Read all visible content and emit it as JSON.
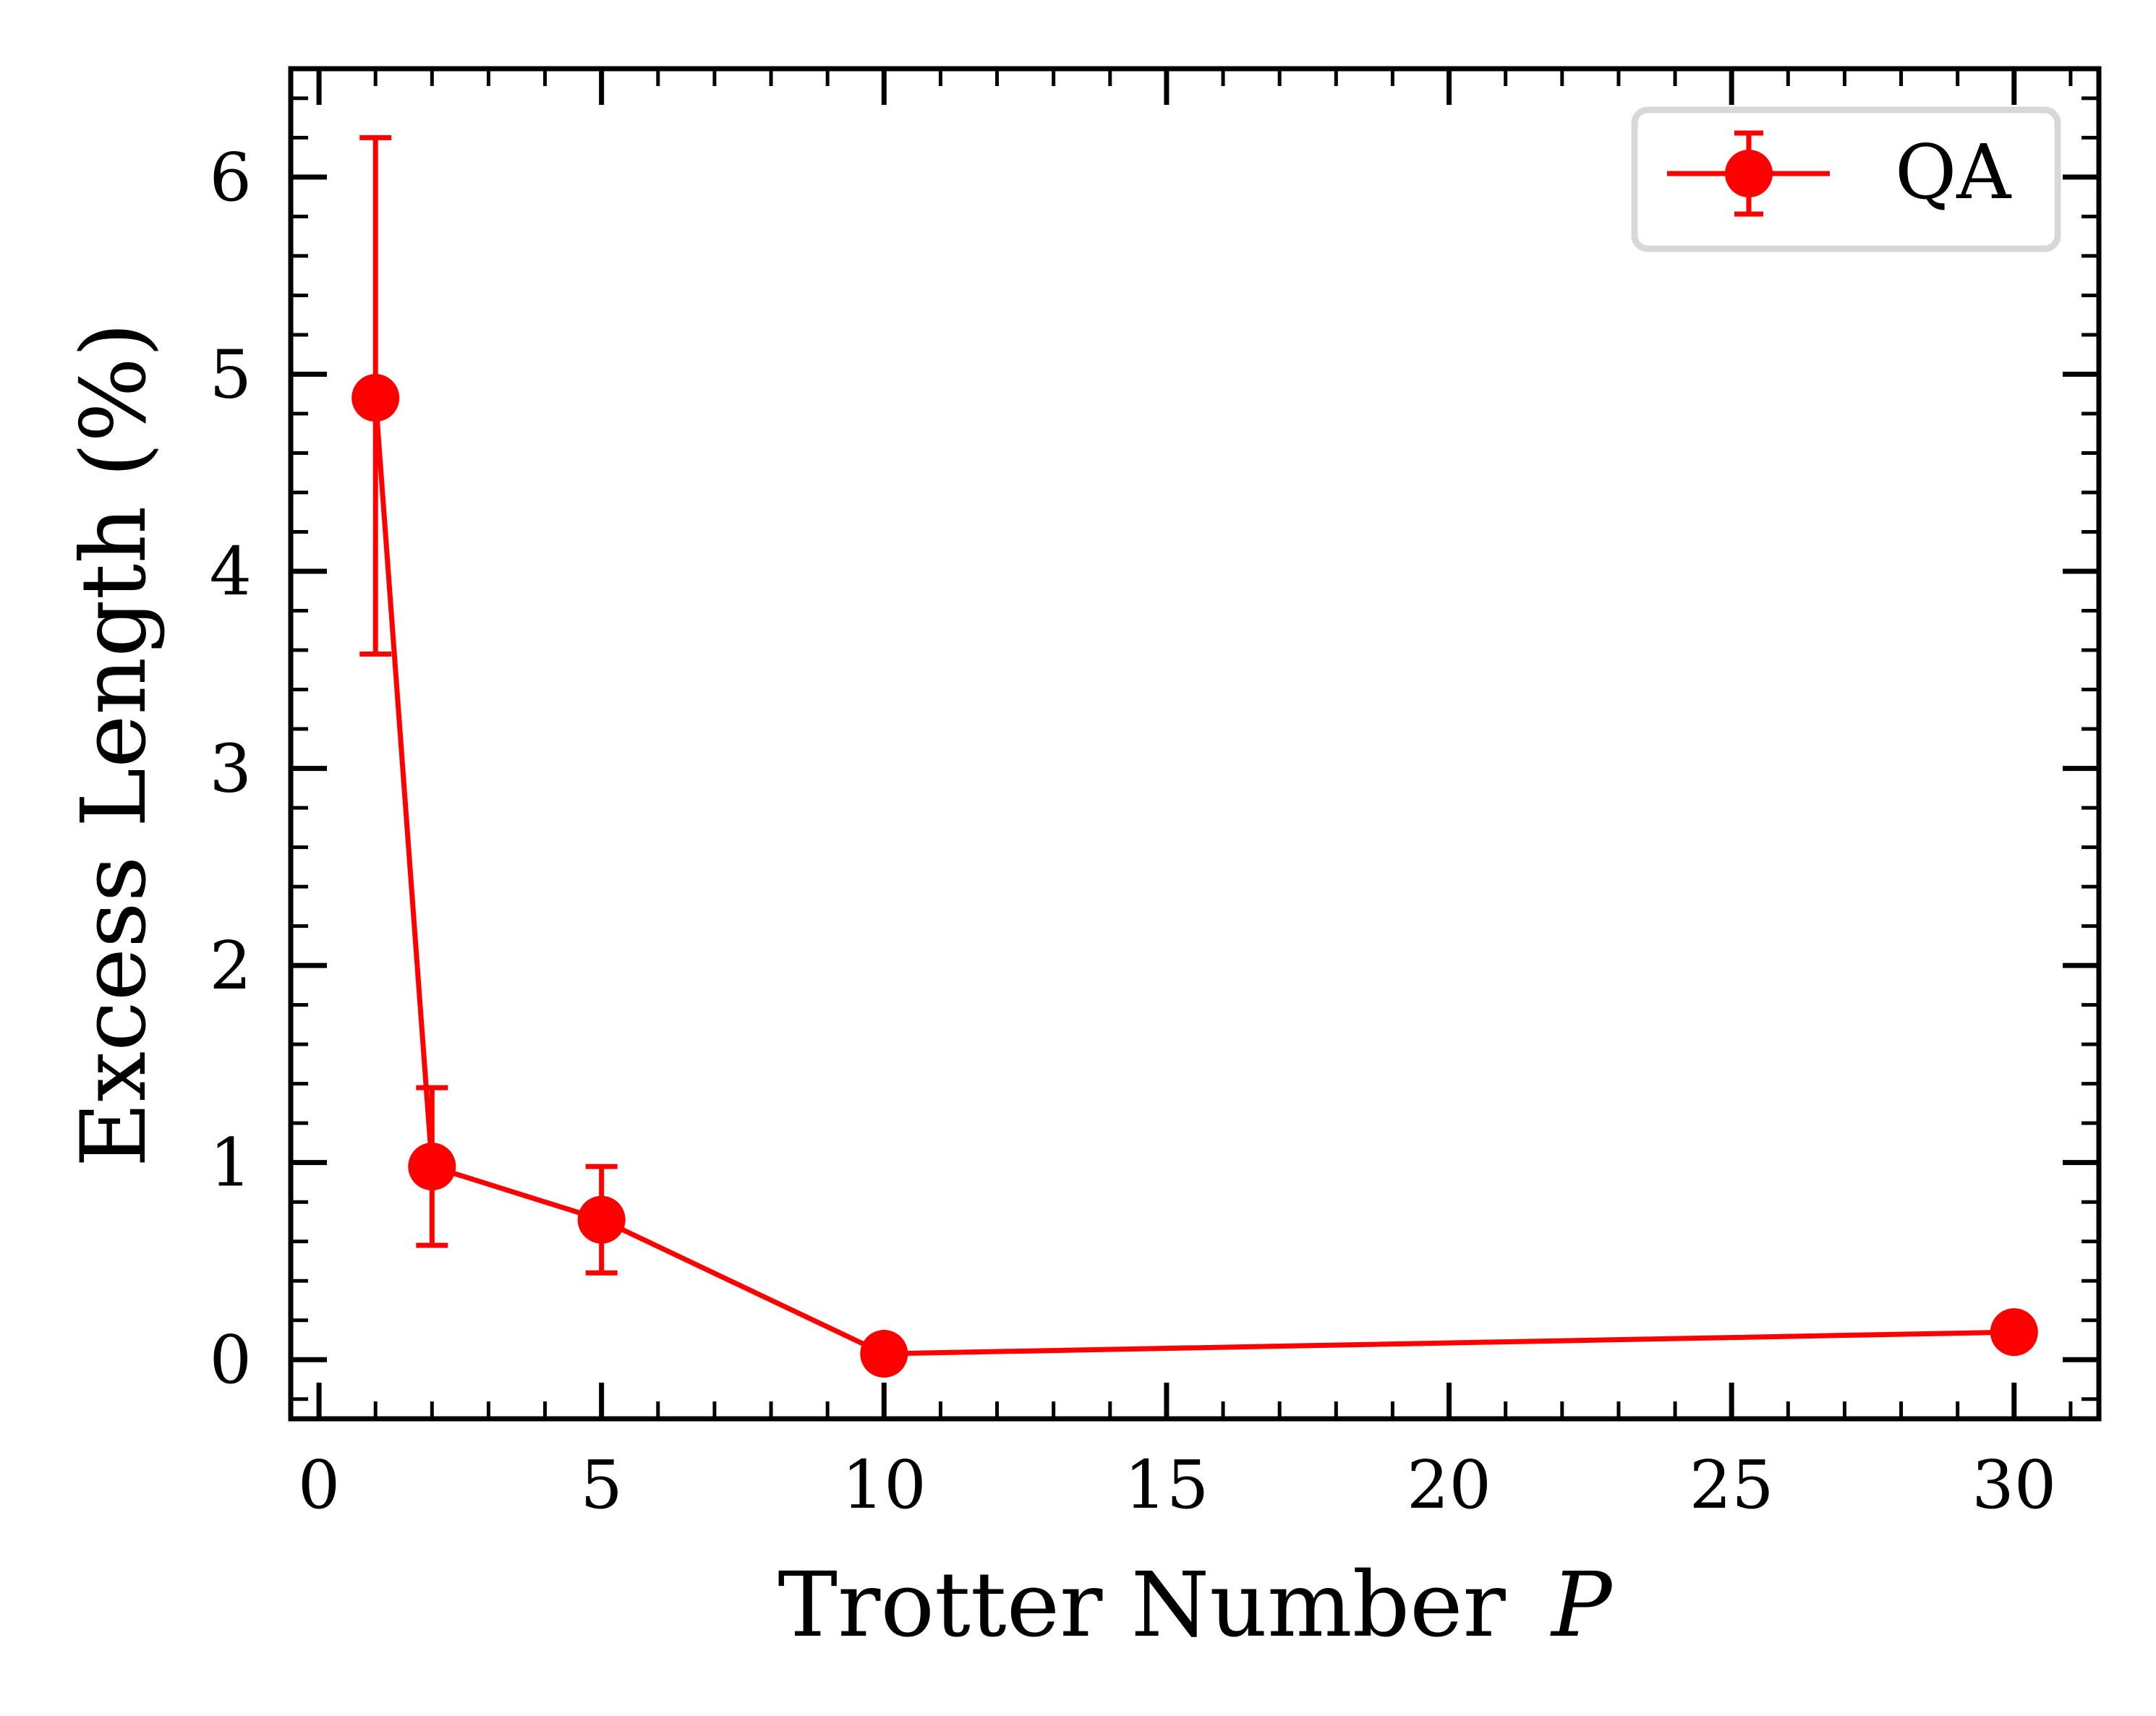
{
  "chart_data": {
    "type": "line",
    "xlabel": "Trotter Number",
    "xlabel_symbol": "P",
    "ylabel": "Excess Length (%)",
    "xlim": [
      -0.5,
      31.5
    ],
    "ylim": [
      -0.3,
      6.55
    ],
    "x_ticks": [
      0,
      5,
      10,
      15,
      20,
      25,
      30
    ],
    "y_ticks": [
      0,
      1,
      2,
      3,
      4,
      5,
      6
    ],
    "x_minor_step": 1,
    "y_minor_step": 0.2,
    "grid": false,
    "legend_position": "top-right",
    "series": [
      {
        "name": "QA",
        "color": "#ff0000",
        "marker": "circle",
        "x": [
          1,
          2,
          5,
          10,
          30
        ],
        "y": [
          4.88,
          0.98,
          0.71,
          0.03,
          0.14
        ],
        "yerr_lower": [
          3.58,
          0.58,
          0.44,
          null,
          null
        ],
        "yerr_upper": [
          6.2,
          1.38,
          0.98,
          null,
          null
        ]
      }
    ]
  }
}
